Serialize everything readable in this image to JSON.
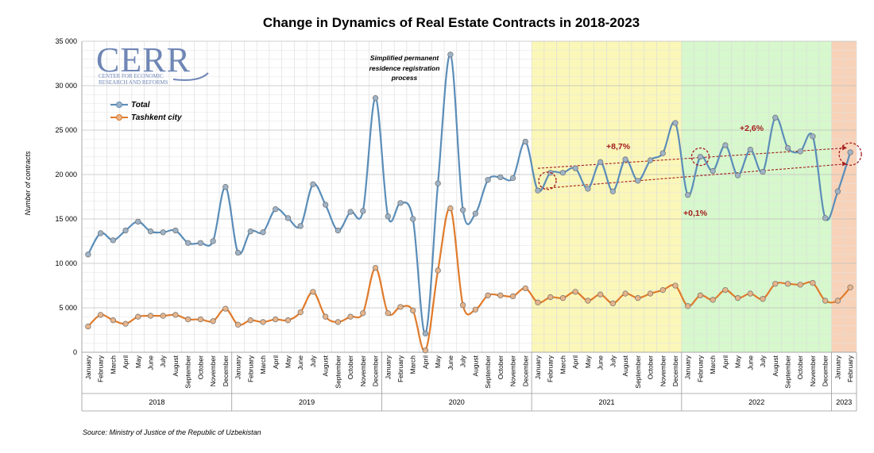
{
  "chart_data": {
    "type": "line",
    "title": "Change in Dynamics of Real Estate Contracts in 2018-2023",
    "ylabel": "Number of contracts",
    "ylim": [
      0,
      35000
    ],
    "yticks": [
      0,
      5000,
      10000,
      15000,
      20000,
      25000,
      30000,
      35000
    ],
    "ytick_labels": [
      "0",
      "5 000",
      "10 000",
      "15 000",
      "20 000",
      "25 000",
      "30 000",
      "35 000"
    ],
    "grid": true,
    "legend_position": "top-left",
    "months": [
      "January",
      "February",
      "March",
      "April",
      "May",
      "June",
      "July",
      "August",
      "September",
      "October",
      "November",
      "December",
      "January",
      "February",
      "March",
      "April",
      "May",
      "June",
      "July",
      "August",
      "September",
      "October",
      "November",
      "December",
      "January",
      "February",
      "March",
      "April",
      "May",
      "June",
      "July",
      "August",
      "September",
      "October",
      "November",
      "December",
      "January",
      "February",
      "March",
      "April",
      "May",
      "June",
      "July",
      "August",
      "September",
      "October",
      "November",
      "December",
      "January",
      "February",
      "March",
      "April",
      "May",
      "June",
      "July",
      "August",
      "September",
      "October",
      "November",
      "December",
      "January",
      "February"
    ],
    "years": [
      {
        "label": "2018",
        "start": 0,
        "count": 12
      },
      {
        "label": "2019",
        "start": 12,
        "count": 12
      },
      {
        "label": "2020",
        "start": 24,
        "count": 12
      },
      {
        "label": "2021",
        "start": 36,
        "count": 12
      },
      {
        "label": "2022",
        "start": 48,
        "count": 12
      },
      {
        "label": "2023",
        "start": 60,
        "count": 2
      }
    ],
    "series": [
      {
        "name": "Total",
        "color": "#5b8db8",
        "values": [
          11000,
          13400,
          12600,
          13700,
          14700,
          13600,
          13500,
          13700,
          12300,
          12300,
          12500,
          18600,
          11200,
          13600,
          13500,
          16100,
          15100,
          14200,
          18900,
          16600,
          13700,
          15800,
          15900,
          28600,
          15300,
          16800,
          15000,
          2100,
          19000,
          33500,
          16000,
          15600,
          19400,
          19700,
          19600,
          23700,
          18200,
          20200,
          20200,
          20700,
          18400,
          21400,
          18100,
          21700,
          19300,
          21600,
          22400,
          25800,
          17700,
          22000,
          20400,
          23300,
          19900,
          22800,
          20300,
          26400,
          23000,
          22600,
          24300,
          15100,
          18100,
          22500
        ]
      },
      {
        "name": "Tashkent city",
        "color": "#e07b2b",
        "values": [
          2900,
          4200,
          3600,
          3200,
          4000,
          4100,
          4100,
          4200,
          3700,
          3700,
          3500,
          4900,
          3100,
          3600,
          3400,
          3700,
          3600,
          4500,
          6800,
          4000,
          3400,
          4000,
          4400,
          9500,
          4400,
          5100,
          4700,
          200,
          9200,
          16200,
          5300,
          4800,
          6400,
          6400,
          6300,
          7200,
          5600,
          6200,
          6100,
          6800,
          5800,
          6500,
          5500,
          6600,
          6100,
          6600,
          7000,
          7500,
          5200,
          6400,
          5900,
          7000,
          6100,
          6600,
          6000,
          7700,
          7700,
          7600,
          7800,
          5800,
          5800,
          7300
        ]
      }
    ],
    "shaded_regions": [
      {
        "start": 36,
        "end": 47,
        "color": "#fbf7b8"
      },
      {
        "start": 48,
        "end": 59,
        "color": "#d6f8cc"
      },
      {
        "start": 60,
        "end": 61,
        "color": "#f8d2b8"
      }
    ],
    "annotations": {
      "note": [
        "Simplified permanent",
        "residence registration",
        "process"
      ],
      "growth_2021": "+8,7%",
      "growth_2022": "+2,6%",
      "growth_low": "+0,1%"
    },
    "trend_lines": [
      {
        "from_index": 36,
        "from_value": 20700,
        "to_index": 61,
        "to_value": 23000
      },
      {
        "from_index": 36,
        "from_value": 18400,
        "to_index": 61,
        "to_value": 21200
      }
    ],
    "highlight_circles": [
      {
        "index": 36,
        "value": 19300
      },
      {
        "index": 49,
        "value": 22000
      },
      {
        "index": 61,
        "value": 22300
      }
    ]
  },
  "logo": {
    "name": "CERR",
    "line1": "CENTER FOR ECONOMIC",
    "line2": "RESEARCH AND REFORMS"
  },
  "source": "Source: Ministry of Justice of the Republic of Uzbekistan"
}
